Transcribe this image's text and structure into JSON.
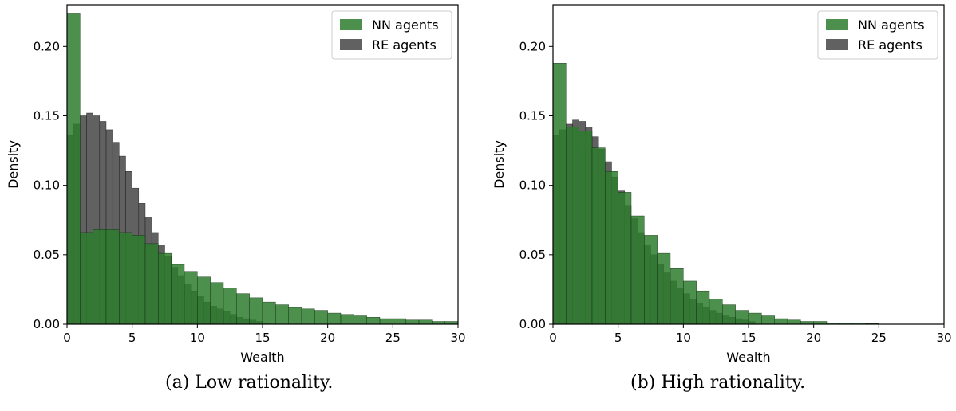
{
  "colors": {
    "nn": "#2e7d2e",
    "re": "#3a3a3a",
    "overlap": "#1c3a1c"
  },
  "chart_data": [
    {
      "type": "bar",
      "caption": "(a) Low rationality.",
      "xlabel": "Wealth",
      "ylabel": "Density",
      "xlim": [
        0,
        30
      ],
      "ylim": [
        0,
        0.23
      ],
      "xticks": [
        "0",
        "5",
        "10",
        "15",
        "20",
        "25",
        "30"
      ],
      "yticks": [
        "0.00",
        "0.05",
        "0.10",
        "0.15",
        "0.20"
      ],
      "legend_position": "top-right",
      "bin_width_nn": 1,
      "bin_width_re": 0.5,
      "series": [
        {
          "name": "NN agents",
          "x": [
            0,
            1,
            2,
            3,
            4,
            5,
            6,
            7,
            8,
            9,
            10,
            11,
            12,
            13,
            14,
            15,
            16,
            17,
            18,
            19,
            20,
            21,
            22,
            23,
            24,
            25,
            26,
            27,
            28,
            29
          ],
          "values": [
            0.224,
            0.066,
            0.068,
            0.068,
            0.066,
            0.064,
            0.058,
            0.051,
            0.043,
            0.038,
            0.034,
            0.03,
            0.026,
            0.022,
            0.019,
            0.016,
            0.014,
            0.012,
            0.011,
            0.01,
            0.008,
            0.007,
            0.006,
            0.005,
            0.004,
            0.004,
            0.003,
            0.003,
            0.002,
            0.002
          ]
        },
        {
          "name": "RE agents",
          "x": [
            0,
            0.5,
            1,
            1.5,
            2,
            2.5,
            3,
            3.5,
            4,
            4.5,
            5,
            5.5,
            6,
            6.5,
            7,
            7.5,
            8,
            8.5,
            9,
            9.5,
            10,
            10.5,
            11,
            11.5,
            12,
            12.5,
            13,
            13.5,
            14,
            14.5,
            15
          ],
          "values": [
            0.136,
            0.144,
            0.15,
            0.152,
            0.15,
            0.146,
            0.14,
            0.131,
            0.121,
            0.11,
            0.098,
            0.087,
            0.077,
            0.066,
            0.057,
            0.049,
            0.041,
            0.035,
            0.029,
            0.024,
            0.02,
            0.016,
            0.013,
            0.011,
            0.009,
            0.007,
            0.005,
            0.004,
            0.003,
            0.002,
            0.001
          ]
        }
      ]
    },
    {
      "type": "bar",
      "caption": "(b) High rationality.",
      "xlabel": "Wealth",
      "ylabel": "Density",
      "xlim": [
        0,
        30
      ],
      "ylim": [
        0,
        0.23
      ],
      "xticks": [
        "0",
        "5",
        "10",
        "15",
        "20",
        "25",
        "30"
      ],
      "yticks": [
        "0.00",
        "0.05",
        "0.10",
        "0.15",
        "0.20"
      ],
      "legend_position": "top-right",
      "bin_width_nn": 1,
      "bin_width_re": 0.5,
      "series": [
        {
          "name": "NN agents",
          "x": [
            0,
            1,
            2,
            3,
            4,
            5,
            6,
            7,
            8,
            9,
            10,
            11,
            12,
            13,
            14,
            15,
            16,
            17,
            18,
            19,
            20,
            21,
            22,
            23,
            24,
            25,
            26,
            27,
            28,
            29
          ],
          "values": [
            0.188,
            0.142,
            0.139,
            0.127,
            0.11,
            0.095,
            0.078,
            0.064,
            0.051,
            0.04,
            0.031,
            0.024,
            0.018,
            0.014,
            0.01,
            0.008,
            0.006,
            0.004,
            0.003,
            0.002,
            0.002,
            0.001,
            0.001,
            0.001,
            0.0005,
            0,
            0,
            0,
            0,
            0
          ]
        },
        {
          "name": "RE agents",
          "x": [
            0,
            0.5,
            1,
            1.5,
            2,
            2.5,
            3,
            3.5,
            4,
            4.5,
            5,
            5.5,
            6,
            6.5,
            7,
            7.5,
            8,
            8.5,
            9,
            9.5,
            10,
            10.5,
            11,
            11.5,
            12,
            12.5,
            13,
            13.5,
            14,
            14.5,
            15
          ],
          "values": [
            0.136,
            0.14,
            0.144,
            0.147,
            0.146,
            0.142,
            0.135,
            0.126,
            0.117,
            0.106,
            0.096,
            0.085,
            0.076,
            0.066,
            0.057,
            0.05,
            0.043,
            0.037,
            0.031,
            0.026,
            0.022,
            0.018,
            0.015,
            0.012,
            0.01,
            0.008,
            0.006,
            0.005,
            0.004,
            0.003,
            0.002
          ]
        }
      ]
    }
  ]
}
